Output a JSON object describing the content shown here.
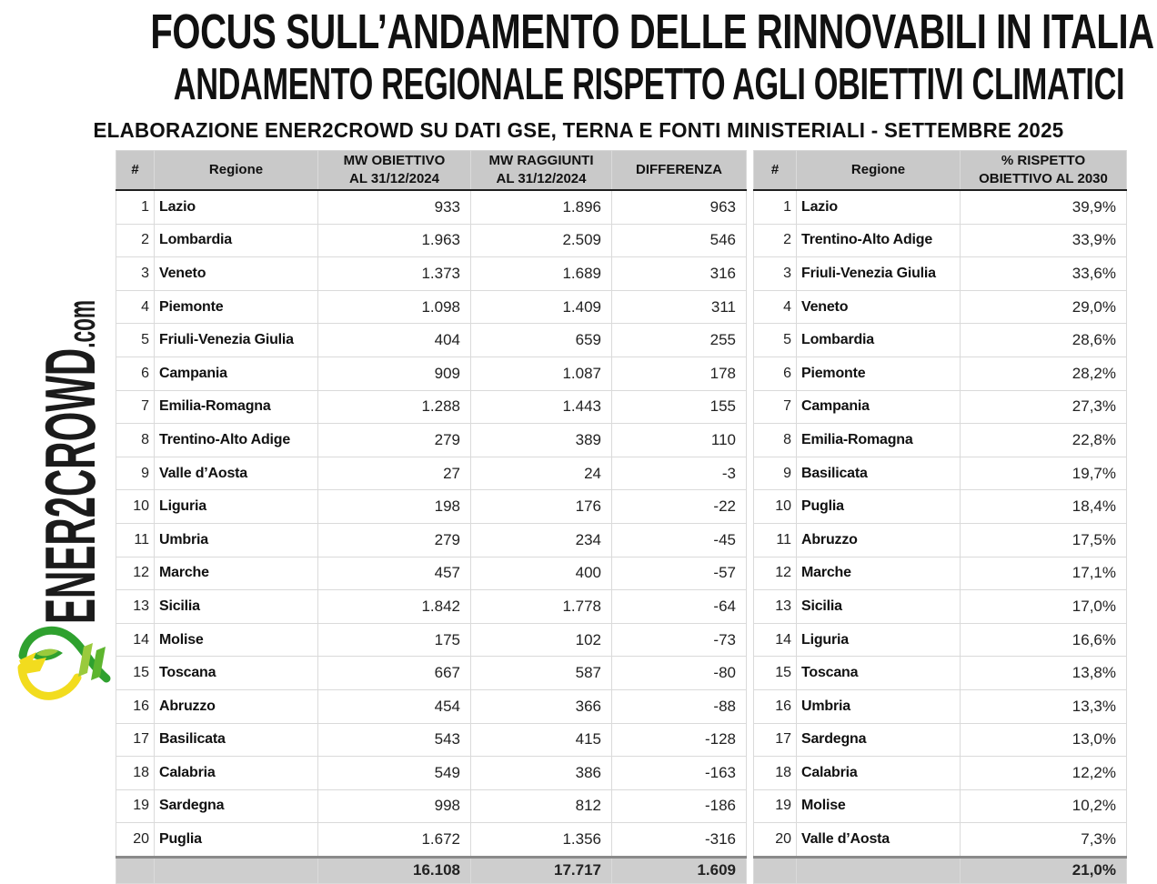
{
  "page": {
    "title": "FOCUS SULL’ANDAMENTO DELLE RINNOVABILI IN ITALIA",
    "subtitle": "ANDAMENTO REGIONALE RISPETTO AGLI OBIETTIVI CLIMATICI",
    "source_line": "ELABORAZIONE ENER2CROWD SU DATI GSE, TERNA E FONTI MINISTERIALI - SETTEMBRE 2025"
  },
  "brand": {
    "name": "ENER2CROWD",
    "suffix": ".com",
    "logo": "ener2crowd-swirl-logo"
  },
  "colors": {
    "header_bg": "#c9c9c9",
    "totals_bg": "#cecece",
    "grid_line": "#dadada",
    "header_rule": "#1f1f1f",
    "totals_rule": "#8a8a8a",
    "text": "#1a1a1a",
    "logo_green": "#2fa12f",
    "logo_light_green": "#9aca3c",
    "logo_yellow": "#f2dc1e"
  },
  "chart_data": [
    {
      "type": "table",
      "columns": [
        "#",
        "Regione",
        "MW OBIETTIVO\nAL 31/12/2024",
        "MW RAGGIUNTI\nAL 31/12/2024",
        "DIFFERENZA"
      ],
      "rows": [
        [
          "1",
          "Lazio",
          "933",
          "1.896",
          "963"
        ],
        [
          "2",
          "Lombardia",
          "1.963",
          "2.509",
          "546"
        ],
        [
          "3",
          "Veneto",
          "1.373",
          "1.689",
          "316"
        ],
        [
          "4",
          "Piemonte",
          "1.098",
          "1.409",
          "311"
        ],
        [
          "5",
          "Friuli-Venezia Giulia",
          "404",
          "659",
          "255"
        ],
        [
          "6",
          "Campania",
          "909",
          "1.087",
          "178"
        ],
        [
          "7",
          "Emilia-Romagna",
          "1.288",
          "1.443",
          "155"
        ],
        [
          "8",
          "Trentino-Alto Adige",
          "279",
          "389",
          "110"
        ],
        [
          "9",
          "Valle d’Aosta",
          "27",
          "24",
          "-3"
        ],
        [
          "10",
          "Liguria",
          "198",
          "176",
          "-22"
        ],
        [
          "11",
          "Umbria",
          "279",
          "234",
          "-45"
        ],
        [
          "12",
          "Marche",
          "457",
          "400",
          "-57"
        ],
        [
          "13",
          "Sicilia",
          "1.842",
          "1.778",
          "-64"
        ],
        [
          "14",
          "Molise",
          "175",
          "102",
          "-73"
        ],
        [
          "15",
          "Toscana",
          "667",
          "587",
          "-80"
        ],
        [
          "16",
          "Abruzzo",
          "454",
          "366",
          "-88"
        ],
        [
          "17",
          "Basilicata",
          "543",
          "415",
          "-128"
        ],
        [
          "18",
          "Calabria",
          "549",
          "386",
          "-163"
        ],
        [
          "19",
          "Sardegna",
          "998",
          "812",
          "-186"
        ],
        [
          "20",
          "Puglia",
          "1.672",
          "1.356",
          "-316"
        ]
      ],
      "totals": [
        "",
        "",
        "16.108",
        "17.717",
        "1.609"
      ]
    },
    {
      "type": "table",
      "columns": [
        "#",
        "Regione",
        "% RISPETTO\nOBIETTIVO AL 2030"
      ],
      "rows": [
        [
          "1",
          "Lazio",
          "39,9%"
        ],
        [
          "2",
          "Trentino-Alto Adige",
          "33,9%"
        ],
        [
          "3",
          "Friuli-Venezia Giulia",
          "33,6%"
        ],
        [
          "4",
          "Veneto",
          "29,0%"
        ],
        [
          "5",
          "Lombardia",
          "28,6%"
        ],
        [
          "6",
          "Piemonte",
          "28,2%"
        ],
        [
          "7",
          "Campania",
          "27,3%"
        ],
        [
          "8",
          "Emilia-Romagna",
          "22,8%"
        ],
        [
          "9",
          "Basilicata",
          "19,7%"
        ],
        [
          "10",
          "Puglia",
          "18,4%"
        ],
        [
          "11",
          "Abruzzo",
          "17,5%"
        ],
        [
          "12",
          "Marche",
          "17,1%"
        ],
        [
          "13",
          "Sicilia",
          "17,0%"
        ],
        [
          "14",
          "Liguria",
          "16,6%"
        ],
        [
          "15",
          "Toscana",
          "13,8%"
        ],
        [
          "16",
          "Umbria",
          "13,3%"
        ],
        [
          "17",
          "Sardegna",
          "13,0%"
        ],
        [
          "18",
          "Calabria",
          "12,2%"
        ],
        [
          "19",
          "Molise",
          "10,2%"
        ],
        [
          "20",
          "Valle d’Aosta",
          "7,3%"
        ]
      ],
      "totals": [
        "",
        "",
        "21,0%"
      ]
    }
  ]
}
